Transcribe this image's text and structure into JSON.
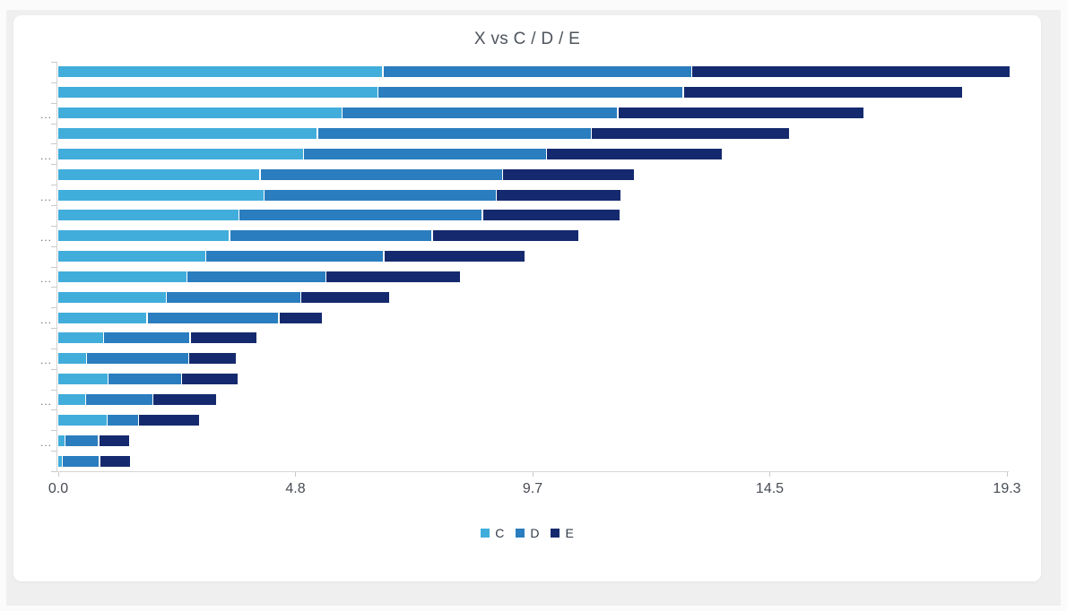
{
  "page": {
    "background": "#fbfbfb",
    "panel_background": "#efefef",
    "card_background": "#ffffff"
  },
  "chart_data": {
    "type": "bar",
    "orientation": "horizontal",
    "stacked": true,
    "title": "X vs C / D / E",
    "xlabel": "",
    "ylabel": "",
    "grid": false,
    "x_axis": {
      "min": 0,
      "max": 19.3,
      "tick_labels": [
        "0.0",
        "4.8",
        "9.7",
        "14.5",
        "19.3"
      ]
    },
    "y_axis": {
      "category_count": 20,
      "categories": [
        "",
        "",
        "...",
        "",
        "...",
        "",
        "...",
        "",
        "...",
        "",
        "...",
        "",
        "...",
        "",
        "...",
        "",
        "...",
        "",
        "...",
        ""
      ]
    },
    "legend": {
      "position": "bottom",
      "items": [
        "C",
        "D",
        "E"
      ]
    },
    "series": [
      {
        "name": "C",
        "color": "#41addb",
        "values": [
          6.59,
          6.49,
          5.76,
          5.26,
          4.98,
          4.09,
          4.17,
          3.66,
          3.47,
          2.99,
          2.6,
          2.18,
          1.79,
          0.91,
          0.56,
          1.0,
          0.54,
          0.98,
          0.12,
          0.07
        ]
      },
      {
        "name": "D",
        "color": "#2a7dbe",
        "values": [
          6.26,
          6.18,
          5.58,
          5.54,
          4.91,
          4.91,
          4.7,
          4.93,
          4.1,
          3.59,
          2.8,
          2.71,
          2.66,
          1.73,
          2.05,
          1.47,
          1.34,
          0.61,
          0.66,
          0.73
        ]
      },
      {
        "name": "E",
        "color": "#152a6e",
        "values": [
          6.45,
          5.67,
          4.98,
          4.02,
          3.56,
          2.65,
          2.52,
          2.78,
          2.96,
          2.85,
          2.72,
          1.79,
          0.85,
          1.33,
          0.94,
          1.13,
          1.27,
          1.22,
          0.6,
          0.61
        ]
      }
    ]
  }
}
